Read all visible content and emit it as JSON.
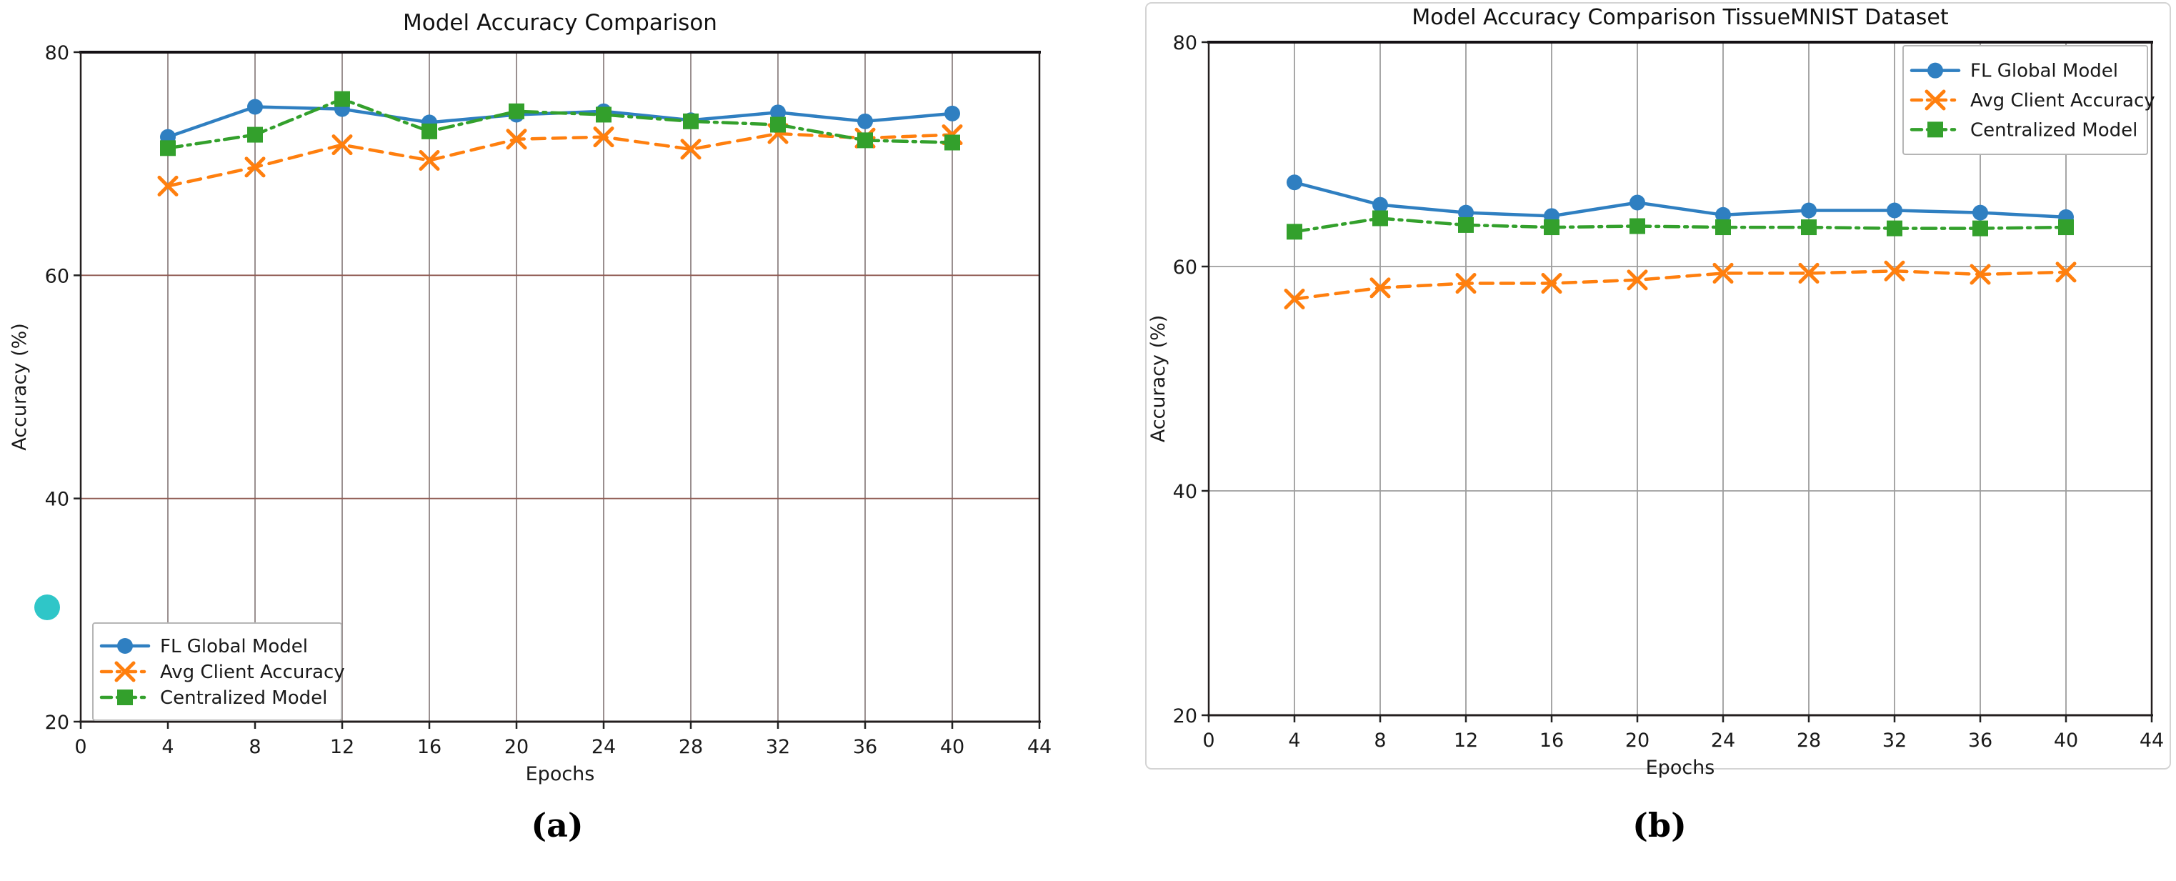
{
  "figure": {
    "background": "#ffffff",
    "captions": {
      "a": "(a)",
      "b": "(b)"
    }
  },
  "colors": {
    "fl_global_blue": "#2f7fc1",
    "avg_client_orange": "#ff7f0e",
    "centralized_green": "#33a02c",
    "cyan_dot": "#2fc6c8",
    "grid_gray": "#9d9d9d",
    "grid_warm_vertical": "#8f8383",
    "grid_warm_horizontal": "#8f5a52",
    "spine_dark": "#241f1f",
    "panel_border_gray": "#d4d4d4"
  },
  "chart_data": [
    {
      "type": "line",
      "title": "Model Accuracy Comparison",
      "xlabel": "Epochs",
      "ylabel": "Accuracy (%)",
      "xlim": [
        0,
        44
      ],
      "ylim": [
        20,
        80
      ],
      "xticks": [
        0,
        4,
        8,
        12,
        16,
        20,
        24,
        28,
        32,
        36,
        40,
        44
      ],
      "yticks": [
        20,
        40,
        60,
        80
      ],
      "grid": true,
      "legend_position": "lower left",
      "x": [
        4,
        8,
        12,
        16,
        20,
        24,
        28,
        32,
        36,
        40
      ],
      "series": [
        {
          "name": "FL Global Model",
          "color": "#2f7fc1",
          "style": "solid",
          "marker": "circle",
          "values": [
            72.4,
            75.1,
            74.9,
            73.7,
            74.4,
            74.7,
            73.9,
            74.6,
            73.8,
            74.5
          ]
        },
        {
          "name": "Avg Client Accuracy",
          "color": "#ff7f0e",
          "style": "dashed",
          "marker": "x",
          "values": [
            68.0,
            69.7,
            71.7,
            70.3,
            72.2,
            72.4,
            71.3,
            72.7,
            72.3,
            72.6
          ]
        },
        {
          "name": "Centralized Model",
          "color": "#33a02c",
          "style": "dashdot",
          "marker": "square",
          "values": [
            71.4,
            72.6,
            75.8,
            72.9,
            74.7,
            74.4,
            73.8,
            73.5,
            72.1,
            71.9
          ]
        }
      ]
    },
    {
      "type": "line",
      "title": "Model Accuracy Comparison TissueMNIST Dataset",
      "xlabel": "Epochs",
      "ylabel": "Accuracy (%)",
      "xlim": [
        0,
        44
      ],
      "ylim": [
        20,
        80
      ],
      "xticks": [
        0,
        4,
        8,
        12,
        16,
        20,
        24,
        28,
        32,
        36,
        40,
        44
      ],
      "yticks": [
        20,
        40,
        60,
        80
      ],
      "grid": true,
      "legend_position": "upper right",
      "x": [
        4,
        8,
        12,
        16,
        20,
        24,
        28,
        32,
        36,
        40
      ],
      "series": [
        {
          "name": "FL Global Model",
          "color": "#2f7fc1",
          "style": "solid",
          "marker": "circle",
          "values": [
            67.5,
            65.5,
            64.8,
            64.5,
            65.7,
            64.6,
            65.0,
            65.0,
            64.8,
            64.4
          ]
        },
        {
          "name": "Avg Client Accuracy",
          "color": "#ff7f0e",
          "style": "dashed",
          "marker": "x",
          "values": [
            57.1,
            58.1,
            58.5,
            58.5,
            58.8,
            59.4,
            59.4,
            59.6,
            59.3,
            59.5
          ]
        },
        {
          "name": "Centralized Model",
          "color": "#33a02c",
          "style": "dashdot",
          "marker": "square",
          "values": [
            63.1,
            64.3,
            63.7,
            63.5,
            63.6,
            63.5,
            63.5,
            63.4,
            63.4,
            63.5
          ]
        }
      ]
    }
  ]
}
